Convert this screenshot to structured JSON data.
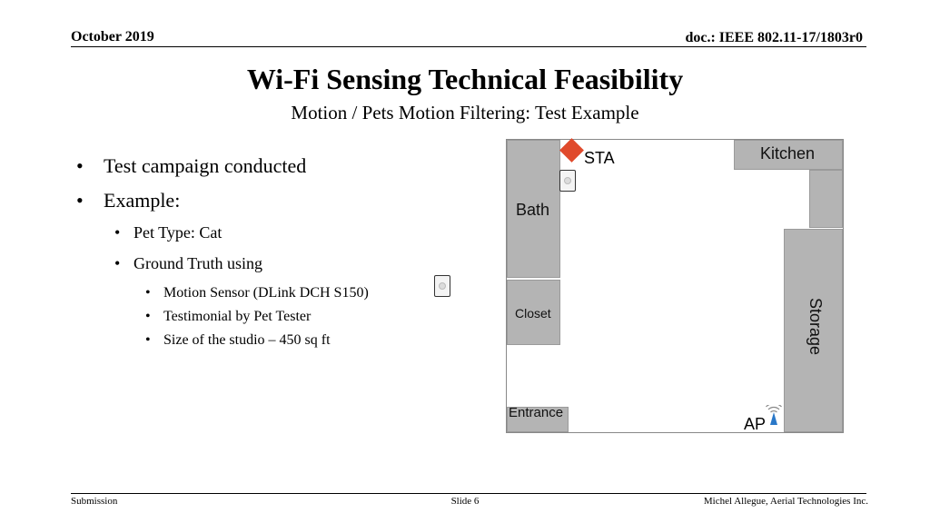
{
  "header": {
    "date": "October 2019",
    "doc": "doc.: IEEE 802.11-17/1803r0"
  },
  "slide": {
    "title": "Wi-Fi Sensing Technical Feasibility",
    "subtitle": "Motion / Pets Motion Filtering: Test Example"
  },
  "bullets": {
    "l1_a": "Test campaign conducted",
    "l1_b": "Example:",
    "l2_a": "Pet Type: Cat",
    "l2_b": "Ground Truth using",
    "l3_a": "Motion Sensor (DLink DCH S150)",
    "l3_b": "Testimonial by Pet Tester",
    "l3_c": "Size of the studio – 450 sq ft"
  },
  "floorplan": {
    "sta": "STA",
    "kitchen": "Kitchen",
    "bath": "Bath",
    "closet": "Closet",
    "storage": "Storage",
    "entrance": "Entrance",
    "ap": "AP"
  },
  "colors": {
    "room": "#b4b4b4",
    "sta_marker": "#e04a2c",
    "ap_signal": "#2a78c8"
  },
  "footer": {
    "left": "Submission",
    "center": "Slide 6",
    "right": "Michel Allegue, Aerial Technologies Inc."
  }
}
